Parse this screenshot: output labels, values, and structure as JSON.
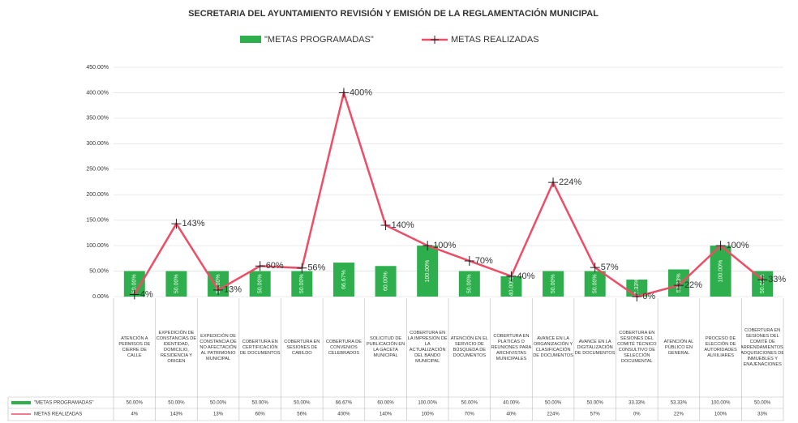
{
  "chart_data": {
    "type": "bar-line",
    "title": "SECRETARIA DEL AYUNTAMIENTO REVISIÓN Y EMISIÓN DE LA REGLAMENTACIÓN MUNICIPAL",
    "categories": [
      "ATENCIÓN A PERMISOS DE CIERRE DE CALLE",
      "EXPEDICIÓN DE CONSTANCIAS DE IDENTIDAD, DOMICILIO, RESIDENCIA Y ORIGEN",
      "EXPEDICIÓN DE CONSTANCIA DE NO AFECTACIÓN AL PATRIMONIO MUNICIPAL",
      "COBERTURA EN CERTIFICACIÓN DE DOCUMENTOS",
      "COBERTURA EN SESIONES DE CABILDO",
      "COBERTURA DE CONVENIOS CELEBRADOS",
      "SOLICITUD DE PUBLICACIÓN EN LA GACETA MUNICIPAL",
      "COBERTURA EN LA IMPRESIÓN DE LA ACTUALIZACIÓN DEL BANDO MUNICIPAL",
      "ATENCIÓN EN EL SERVICIO DE BÚSQUEDA DE DOCUMENTOS",
      "COBERTURA EN PLÁTICAS O REUNIONES PARA ARCHIVISTAS MUNICIPALES",
      "AVANCE EN LA ORGANIZACIÓN Y CLASIFICACIÓN DE DOCUMENTOS",
      "AVANCE EN LA DIGITALIZACIÓN DE DOCUMENTOS",
      "COBERTURA EN SESIONES DEL COMITÉ TÉCNICO CONSULTIVO DE SELECCIÓN DOCUMENTAL",
      "ATENCIÓN AL PÚBLICO EN GENERAL",
      "PROCESO DE ELECCIÓN DE AUTORIDADES AUXILIARES",
      "COBERTURA EN SESIONES DEL COMITÉ DE ARRENDAMIENTOS, ADQUISICIONES DE INMUEBLES Y ENAJENACIONES"
    ],
    "series": [
      {
        "name": "\"METAS PROGRAMADAS\"",
        "type": "bar",
        "color": "#2fae4e",
        "values": [
          50,
          50,
          50,
          50,
          50,
          66.67,
          60,
          100,
          50,
          40,
          50,
          50,
          33.33,
          53.33,
          100,
          50
        ],
        "value_labels": [
          "50.00%",
          "50.00%",
          "50.00%",
          "50.00%",
          "50.00%",
          "66.67%",
          "60.00%",
          "100.00%",
          "50.00%",
          "40.00%",
          "50.00%",
          "50.00%",
          "33.33%",
          "53.33%",
          "100.00%",
          "50.00%"
        ]
      },
      {
        "name": "METAS REALIZADAS",
        "type": "line",
        "color": "#ee4d66",
        "values": [
          4,
          143,
          13,
          60,
          56,
          400,
          140,
          100,
          70,
          40,
          224,
          57,
          0,
          22,
          100,
          33
        ],
        "value_labels": [
          "4%",
          "143%",
          "13%",
          "60%",
          "56%",
          "400%",
          "140%",
          "100%",
          "70%",
          "40%",
          "224%",
          "57%",
          "0%",
          "22%",
          "100%",
          "33%"
        ]
      }
    ],
    "ylim": [
      0,
      450
    ],
    "yticks": [
      {
        "value": 0,
        "label": "0.00%"
      },
      {
        "value": 50,
        "label": "50.00%"
      },
      {
        "value": 100,
        "label": "100.00%"
      },
      {
        "value": 150,
        "label": "150.00%"
      },
      {
        "value": 200,
        "label": "200.00%"
      },
      {
        "value": 250,
        "label": "250.00%"
      },
      {
        "value": 300,
        "label": "300.00%"
      },
      {
        "value": 350,
        "label": "350.00%"
      },
      {
        "value": 400,
        "label": "400.00%"
      },
      {
        "value": 450,
        "label": "450.00%"
      }
    ],
    "grid": true,
    "legend": "top"
  }
}
